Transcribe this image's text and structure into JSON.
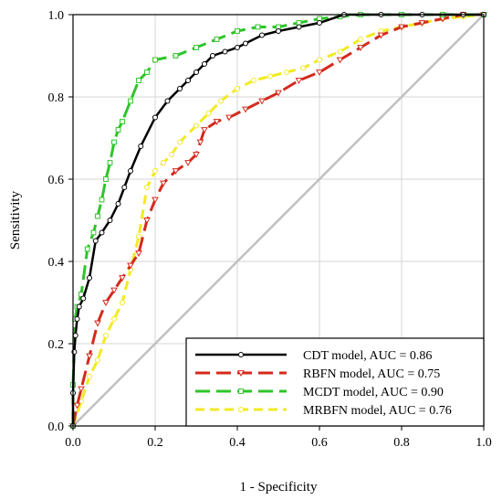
{
  "chart_data": {
    "type": "line",
    "xlabel": "1 - Specificity",
    "ylabel": "Sensitivity",
    "xlim": [
      0,
      1
    ],
    "ylim": [
      0,
      1
    ],
    "xticks": [
      "0.0",
      "0.2",
      "0.4",
      "0.6",
      "0.8",
      "1.0"
    ],
    "yticks": [
      "0.0",
      "0.2",
      "0.4",
      "0.6",
      "0.8",
      "1.0"
    ],
    "grid": true,
    "legend_position": "bottom-right",
    "diagonal_reference": true,
    "series": [
      {
        "name": "CDT model, AUC = 0.86",
        "color": "#000000",
        "marker": "circle",
        "dash": "solid",
        "points": [
          [
            0,
            0
          ],
          [
            0,
            0.08
          ],
          [
            0.003,
            0.18
          ],
          [
            0.006,
            0.22
          ],
          [
            0.01,
            0.26
          ],
          [
            0.015,
            0.29
          ],
          [
            0.025,
            0.31
          ],
          [
            0.04,
            0.36
          ],
          [
            0.055,
            0.45
          ],
          [
            0.07,
            0.47
          ],
          [
            0.09,
            0.5
          ],
          [
            0.11,
            0.54
          ],
          [
            0.125,
            0.58
          ],
          [
            0.14,
            0.62
          ],
          [
            0.165,
            0.68
          ],
          [
            0.2,
            0.75
          ],
          [
            0.23,
            0.79
          ],
          [
            0.26,
            0.82
          ],
          [
            0.28,
            0.84
          ],
          [
            0.3,
            0.86
          ],
          [
            0.32,
            0.88
          ],
          [
            0.34,
            0.9
          ],
          [
            0.37,
            0.91
          ],
          [
            0.4,
            0.92
          ],
          [
            0.42,
            0.93
          ],
          [
            0.46,
            0.95
          ],
          [
            0.5,
            0.96
          ],
          [
            0.55,
            0.97
          ],
          [
            0.6,
            0.98
          ],
          [
            0.66,
            1.0
          ],
          [
            0.75,
            1.0
          ],
          [
            0.85,
            1.0
          ],
          [
            0.95,
            1.0
          ],
          [
            1.0,
            1.0
          ]
        ]
      },
      {
        "name": "RBFN model, AUC = 0.75",
        "color": "#d42a1c",
        "marker": "triangle-down",
        "dash": "long-dash",
        "points": [
          [
            0,
            0
          ],
          [
            0.01,
            0.05
          ],
          [
            0.02,
            0.09
          ],
          [
            0.04,
            0.17
          ],
          [
            0.06,
            0.25
          ],
          [
            0.08,
            0.3
          ],
          [
            0.1,
            0.33
          ],
          [
            0.12,
            0.36
          ],
          [
            0.14,
            0.39
          ],
          [
            0.16,
            0.42
          ],
          [
            0.18,
            0.5
          ],
          [
            0.2,
            0.55
          ],
          [
            0.22,
            0.59
          ],
          [
            0.25,
            0.62
          ],
          [
            0.28,
            0.64
          ],
          [
            0.3,
            0.66
          ],
          [
            0.31,
            0.69
          ],
          [
            0.32,
            0.72
          ],
          [
            0.35,
            0.74
          ],
          [
            0.38,
            0.75
          ],
          [
            0.42,
            0.77
          ],
          [
            0.46,
            0.79
          ],
          [
            0.5,
            0.81
          ],
          [
            0.55,
            0.84
          ],
          [
            0.6,
            0.86
          ],
          [
            0.65,
            0.89
          ],
          [
            0.7,
            0.92
          ],
          [
            0.75,
            0.95
          ],
          [
            0.8,
            0.97
          ],
          [
            0.85,
            0.98
          ],
          [
            0.9,
            0.99
          ],
          [
            0.95,
            1.0
          ],
          [
            1.0,
            1.0
          ]
        ]
      },
      {
        "name": "MCDT model, AUC = 0.90",
        "color": "#2fc42a",
        "marker": "square",
        "dash": "long-dash",
        "points": [
          [
            0,
            0
          ],
          [
            0,
            0.1
          ],
          [
            0.005,
            0.26
          ],
          [
            0.01,
            0.29
          ],
          [
            0.02,
            0.32
          ],
          [
            0.035,
            0.43
          ],
          [
            0.05,
            0.47
          ],
          [
            0.06,
            0.51
          ],
          [
            0.07,
            0.55
          ],
          [
            0.08,
            0.6
          ],
          [
            0.09,
            0.64
          ],
          [
            0.1,
            0.69
          ],
          [
            0.11,
            0.72
          ],
          [
            0.12,
            0.74
          ],
          [
            0.14,
            0.79
          ],
          [
            0.16,
            0.84
          ],
          [
            0.18,
            0.86
          ],
          [
            0.2,
            0.89
          ],
          [
            0.25,
            0.9
          ],
          [
            0.3,
            0.92
          ],
          [
            0.35,
            0.94
          ],
          [
            0.4,
            0.96
          ],
          [
            0.45,
            0.97
          ],
          [
            0.5,
            0.97
          ],
          [
            0.55,
            0.98
          ],
          [
            0.6,
            0.99
          ],
          [
            0.65,
            0.995
          ],
          [
            0.7,
            1.0
          ],
          [
            0.8,
            1.0
          ],
          [
            0.9,
            1.0
          ],
          [
            1.0,
            1.0
          ]
        ]
      },
      {
        "name": "MRBFN model, AUC = 0.76",
        "color": "#f2ea22",
        "marker": "circle",
        "dash": "dashed",
        "points": [
          [
            0,
            0
          ],
          [
            0.02,
            0.06
          ],
          [
            0.04,
            0.12
          ],
          [
            0.06,
            0.16
          ],
          [
            0.08,
            0.22
          ],
          [
            0.1,
            0.26
          ],
          [
            0.12,
            0.3
          ],
          [
            0.14,
            0.38
          ],
          [
            0.16,
            0.46
          ],
          [
            0.18,
            0.58
          ],
          [
            0.2,
            0.62
          ],
          [
            0.22,
            0.64
          ],
          [
            0.24,
            0.66
          ],
          [
            0.26,
            0.69
          ],
          [
            0.3,
            0.73
          ],
          [
            0.33,
            0.76
          ],
          [
            0.36,
            0.79
          ],
          [
            0.4,
            0.82
          ],
          [
            0.44,
            0.84
          ],
          [
            0.48,
            0.85
          ],
          [
            0.52,
            0.86
          ],
          [
            0.56,
            0.87
          ],
          [
            0.6,
            0.89
          ],
          [
            0.65,
            0.91
          ],
          [
            0.7,
            0.94
          ],
          [
            0.75,
            0.96
          ],
          [
            0.8,
            0.97
          ],
          [
            0.85,
            0.98
          ],
          [
            0.9,
            0.99
          ],
          [
            0.95,
            0.995
          ],
          [
            1.0,
            1.0
          ]
        ]
      }
    ]
  }
}
